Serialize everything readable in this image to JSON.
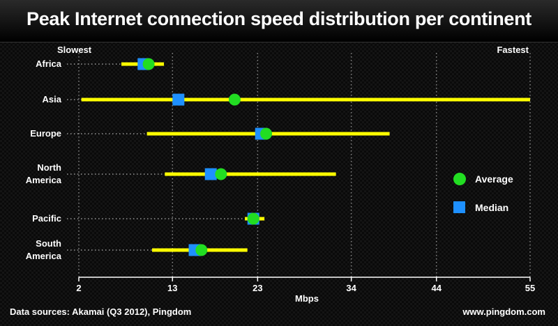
{
  "title": "Peak Internet connection speed distribution per continent",
  "footer": {
    "sources": "Data sources: Akamai (Q3 2012), Pingdom",
    "site": "www.pingdom.com"
  },
  "colors": {
    "range": "#ffff00",
    "average": "#22dd22",
    "median": "#1e90ff"
  },
  "chart_data": {
    "type": "scatter",
    "xlabel": "Mbps",
    "xlim": [
      2,
      55
    ],
    "xticks": [
      2,
      13,
      23,
      34,
      44,
      55
    ],
    "slow_label": "Slowest",
    "fast_label": "Fastest",
    "legend": [
      {
        "name": "Average",
        "marker": "circle"
      },
      {
        "name": "Median",
        "marker": "square"
      }
    ],
    "legend_position": "right",
    "categories": [
      {
        "label": [
          "Africa"
        ],
        "min": 7.0,
        "max": 12.0,
        "median": 9.6,
        "average": 10.2
      },
      {
        "label": [
          "Asia"
        ],
        "min": 2.3,
        "max": 55.0,
        "median": 13.7,
        "average": 20.3
      },
      {
        "label": [
          "Europe"
        ],
        "min": 10.0,
        "max": 38.5,
        "median": 23.4,
        "average": 24.0
      },
      {
        "label": [
          "North",
          "America"
        ],
        "min": 12.1,
        "max": 32.2,
        "median": 17.5,
        "average": 18.7
      },
      {
        "label": [
          "Pacific"
        ],
        "min": 21.5,
        "max": 23.8,
        "median": 22.5,
        "average": 22.5
      },
      {
        "label": [
          "South",
          "America"
        ],
        "min": 10.6,
        "max": 21.8,
        "median": 15.6,
        "average": 16.4
      }
    ]
  }
}
